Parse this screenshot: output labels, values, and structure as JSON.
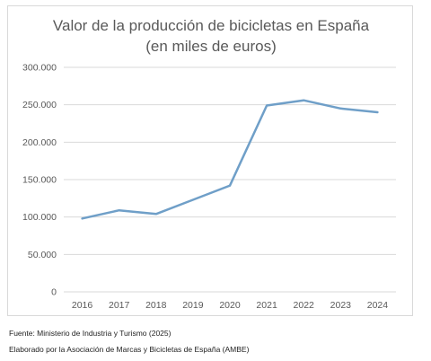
{
  "chart_data": {
    "type": "line",
    "title_line1": "Valor de la producción de bicicletas en España",
    "title_line2": "(en miles de euros)",
    "xlabel": "",
    "ylabel": "",
    "x": [
      "2016",
      "2017",
      "2018",
      "2019",
      "2020",
      "2021",
      "2022",
      "2023",
      "2024"
    ],
    "series": [
      {
        "values": [
          98000,
          109000,
          104000,
          123000,
          142000,
          249000,
          256000,
          245000,
          240000
        ]
      }
    ],
    "ylim": [
      0,
      300000
    ],
    "yticks": [
      0,
      50000,
      100000,
      150000,
      200000,
      250000,
      300000
    ],
    "ytick_labels": [
      "0",
      "50.000",
      "100.000",
      "150.000",
      "200.000",
      "250.000",
      "300.000"
    ],
    "grid": "horizontal",
    "line_color": "#6f9fc8",
    "grid_color": "#d9d9d9",
    "legend": "none"
  },
  "footer": {
    "source": "Fuente: Ministerio de Industria y Turismo (2025)",
    "credit": "Elaborado por la Asociación de Marcas y Bicicletas de España (AMBE)"
  }
}
